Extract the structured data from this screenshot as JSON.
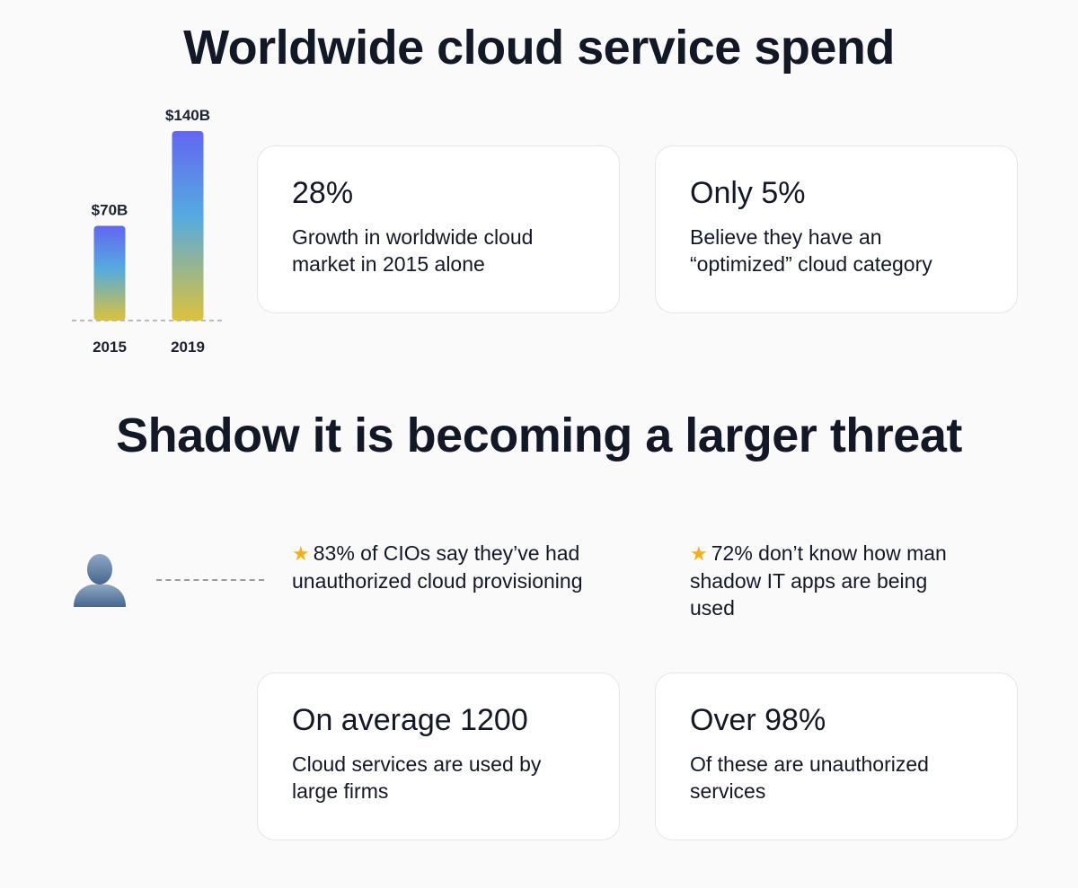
{
  "section1": {
    "title": "Worldwide cloud service spend"
  },
  "section2": {
    "title": "Shadow it is becoming a larger threat"
  },
  "chart_data": {
    "type": "bar",
    "categories": [
      "2015",
      "2019"
    ],
    "values": [
      70,
      140
    ],
    "data_labels": [
      "$70B",
      "$140B"
    ],
    "unit": "$B",
    "ylim": [
      0,
      140
    ],
    "grid": false,
    "colors": {
      "bar_top": "#6366f1",
      "bar_mid": "#55aadf",
      "bar_bottom": "#dcc23a",
      "baseline": "#b8bac0"
    }
  },
  "cards": {
    "growth": {
      "value": "28%",
      "desc": "Growth in worldwide cloud market in 2015 alone"
    },
    "optimized": {
      "value": "Only 5%",
      "desc": "Believe they have an “optimized” cloud category"
    },
    "average": {
      "value": "On average 1200",
      "desc": "Cloud services are used by large firms"
    },
    "unauthorized": {
      "value": "Over 98%",
      "desc": "Of these are unauthorized services"
    }
  },
  "notes": {
    "cios": {
      "icon": "star-icon",
      "text": "83% of CIOs say they’ve had unauthorized cloud provisioning"
    },
    "apps": {
      "icon": "star-icon",
      "text": "72% don’t know how man shadow IT apps are being used"
    }
  },
  "icons": {
    "person": "person-silhouette-icon"
  },
  "colors": {
    "background": "#fafafa",
    "text": "#121826",
    "card_border": "#e4e5ea",
    "star": "#f2b01e"
  }
}
